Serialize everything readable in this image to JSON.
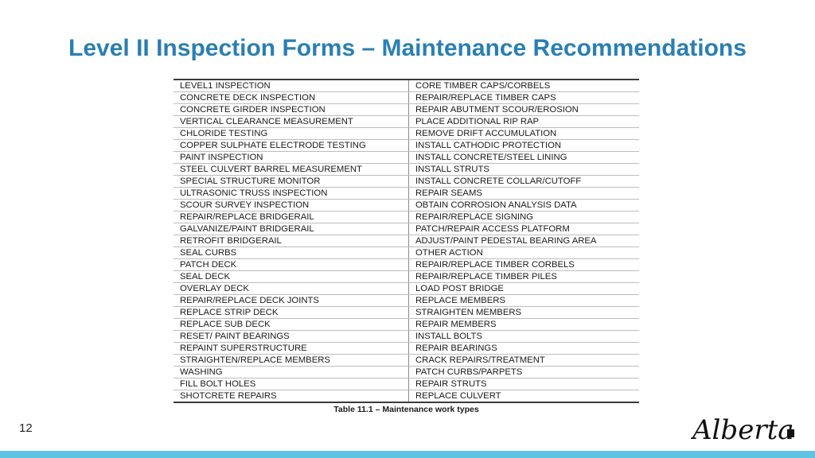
{
  "slide": {
    "title": "Level II Inspection Forms – Maintenance Recommendations",
    "page_number": "12"
  },
  "table": {
    "caption": "Table 11.1 – Maintenance work types",
    "rows": [
      [
        "LEVEL1 INSPECTION",
        "CORE TIMBER CAPS/CORBELS"
      ],
      [
        "CONCRETE DECK INSPECTION",
        "REPAIR/REPLACE TIMBER CAPS"
      ],
      [
        "CONCRETE GIRDER INSPECTION",
        "REPAIR ABUTMENT SCOUR/EROSION"
      ],
      [
        "VERTICAL CLEARANCE MEASUREMENT",
        "PLACE ADDITIONAL RIP RAP"
      ],
      [
        "CHLORIDE TESTING",
        "REMOVE DRIFT ACCUMULATION"
      ],
      [
        "COPPER SULPHATE ELECTRODE TESTING",
        "INSTALL CATHODIC PROTECTION"
      ],
      [
        "PAINT INSPECTION",
        "INSTALL CONCRETE/STEEL LINING"
      ],
      [
        "STEEL CULVERT BARREL MEASUREMENT",
        "INSTALL STRUTS"
      ],
      [
        "SPECIAL STRUCTURE MONITOR",
        "INSTALL CONCRETE COLLAR/CUTOFF"
      ],
      [
        "ULTRASONIC TRUSS INSPECTION",
        "REPAIR SEAMS"
      ],
      [
        "SCOUR SURVEY INSPECTION",
        "OBTAIN CORROSION ANALYSIS DATA"
      ],
      [
        "REPAIR/REPLACE BRIDGERAIL",
        "REPAIR/REPLACE SIGNING"
      ],
      [
        "GALVANIZE/PAINT BRIDGERAIL",
        "PATCH/REPAIR ACCESS PLATFORM"
      ],
      [
        "RETROFIT BRIDGERAIL",
        "ADJUST/PAINT PEDESTAL BEARING AREA"
      ],
      [
        "SEAL CURBS",
        "OTHER ACTION"
      ],
      [
        "PATCH DECK",
        "REPAIR/REPLACE TIMBER CORBELS"
      ],
      [
        "SEAL DECK",
        "REPAIR/REPLACE TIMBER PILES"
      ],
      [
        "OVERLAY DECK",
        "LOAD POST BRIDGE"
      ],
      [
        "REPAIR/REPLACE DECK JOINTS",
        "REPLACE MEMBERS"
      ],
      [
        "REPLACE STRIP DECK",
        "STRAIGHTEN MEMBERS"
      ],
      [
        "REPLACE SUB DECK",
        "REPAIR MEMBERS"
      ],
      [
        "RESET/ PAINT BEARINGS",
        "INSTALL BOLTS"
      ],
      [
        "REPAINT SUPERSTRUCTURE",
        "REPAIR BEARINGS"
      ],
      [
        "STRAIGHTEN/REPLACE MEMBERS",
        "CRACK REPAIRS/TREATMENT"
      ],
      [
        "WASHING",
        "PATCH CURBS/PARPETS"
      ],
      [
        "FILL BOLT HOLES",
        "REPAIR STRUTS"
      ],
      [
        "SHOTCRETE REPAIRS",
        "REPLACE CULVERT"
      ]
    ]
  },
  "logo": {
    "text": "Alberta",
    "icon": "alberta-logo"
  },
  "colors": {
    "title": "#2a7fb3",
    "bottom_bar": "#5fc3e4"
  }
}
